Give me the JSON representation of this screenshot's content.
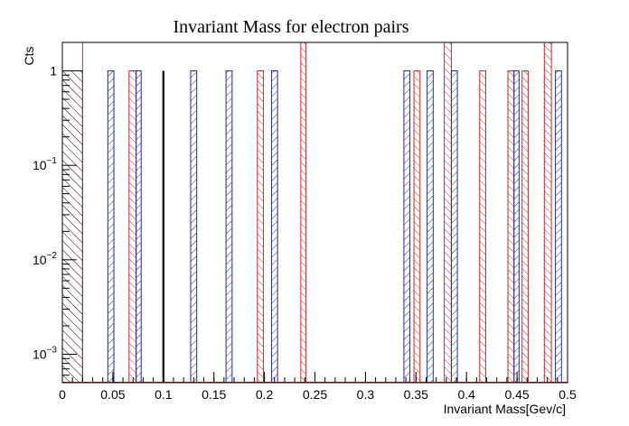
{
  "chart_data": {
    "type": "bar",
    "title": "Invariant Mass for electron pairs",
    "xlabel": "Invariant Mass[Gev/c]",
    "ylabel": "Cts",
    "xlim": [
      0,
      0.5
    ],
    "ylim": [
      0.0005,
      2
    ],
    "y_scale": "log",
    "x_ticks": [
      "0",
      "0.05",
      "0.1",
      "0.15",
      "0.2",
      "0.25",
      "0.3",
      "0.35",
      "0.4",
      "0.45",
      "0.5"
    ],
    "y_ticks": [
      {
        "value": 1,
        "label": "1",
        "exp": ""
      },
      {
        "value": 0.1,
        "label": "10",
        "exp": "−1"
      },
      {
        "value": 0.01,
        "label": "10",
        "exp": "−2"
      },
      {
        "value": 0.001,
        "label": "10",
        "exp": "−3"
      }
    ],
    "colors": {
      "blue": "#1f2a8c",
      "red": "#c62828",
      "black": "#000000"
    },
    "bars": [
      {
        "x0": 0.0,
        "x1": 0.02,
        "value": 1,
        "color": "black",
        "hatch": "back"
      },
      {
        "x0": 0.0,
        "x1": 0.02,
        "value": 2,
        "color": "red",
        "hatch": "none"
      },
      {
        "x0": 0.045,
        "x1": 0.051,
        "value": 1,
        "color": "blue",
        "hatch": "fwd"
      },
      {
        "x0": 0.066,
        "x1": 0.073,
        "value": 1,
        "color": "red",
        "hatch": "back"
      },
      {
        "x0": 0.073,
        "x1": 0.078,
        "value": 1,
        "color": "blue",
        "hatch": "fwd"
      },
      {
        "x0": 0.099,
        "x1": 0.101,
        "value": 1,
        "color": "black",
        "hatch": "solid"
      },
      {
        "x0": 0.127,
        "x1": 0.133,
        "value": 1,
        "color": "blue",
        "hatch": "fwd"
      },
      {
        "x0": 0.162,
        "x1": 0.168,
        "value": 1,
        "color": "blue",
        "hatch": "fwd"
      },
      {
        "x0": 0.193,
        "x1": 0.199,
        "value": 1,
        "color": "red",
        "hatch": "back"
      },
      {
        "x0": 0.207,
        "x1": 0.213,
        "value": 1,
        "color": "blue",
        "hatch": "fwd"
      },
      {
        "x0": 0.236,
        "x1": 0.241,
        "value": 2,
        "color": "red",
        "hatch": "back"
      },
      {
        "x0": 0.338,
        "x1": 0.344,
        "value": 1,
        "color": "blue",
        "hatch": "fwd"
      },
      {
        "x0": 0.348,
        "x1": 0.354,
        "value": 1,
        "color": "red",
        "hatch": "back"
      },
      {
        "x0": 0.361,
        "x1": 0.367,
        "value": 1,
        "color": "blue",
        "hatch": "fwd"
      },
      {
        "x0": 0.378,
        "x1": 0.385,
        "value": 2,
        "color": "red",
        "hatch": "back"
      },
      {
        "x0": 0.385,
        "x1": 0.391,
        "value": 1,
        "color": "blue",
        "hatch": "fwd"
      },
      {
        "x0": 0.413,
        "x1": 0.419,
        "value": 1,
        "color": "red",
        "hatch": "back"
      },
      {
        "x0": 0.441,
        "x1": 0.447,
        "value": 1,
        "color": "red",
        "hatch": "back"
      },
      {
        "x0": 0.447,
        "x1": 0.452,
        "value": 1,
        "color": "blue",
        "hatch": "fwd"
      },
      {
        "x0": 0.455,
        "x1": 0.461,
        "value": 1,
        "color": "red",
        "hatch": "back"
      },
      {
        "x0": 0.477,
        "x1": 0.484,
        "value": 2,
        "color": "red",
        "hatch": "back"
      },
      {
        "x0": 0.488,
        "x1": 0.494,
        "value": 1,
        "color": "blue",
        "hatch": "fwd"
      }
    ]
  }
}
